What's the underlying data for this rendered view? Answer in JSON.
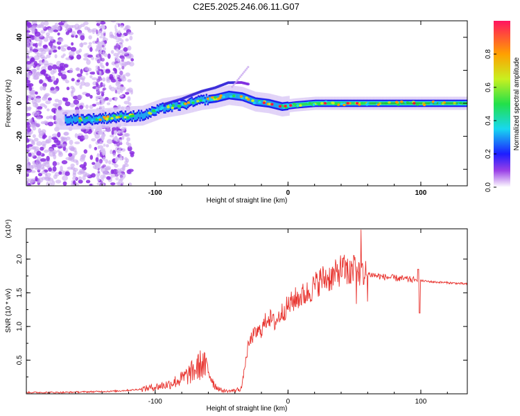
{
  "title": "C2E5.2025.246.06.11.G07",
  "chart_data": [
    {
      "type": "heatmap",
      "xlabel": "Height of straight line (km)",
      "ylabel": "Frequency (Hz)",
      "xlim": [
        -197,
        135
      ],
      "ylim": [
        -50,
        50
      ],
      "xticks": [
        "-100",
        "0",
        "100"
      ],
      "yticks": [
        "40",
        "20",
        "0",
        "-20",
        "-40"
      ],
      "colorbar": {
        "label": "Normalized spectral amplitude",
        "ticks": [
          "0.0",
          "0.2",
          "0.4",
          "0.6",
          "0.8"
        ],
        "range": [
          0,
          1
        ]
      },
      "ridge": [
        {
          "x": -165,
          "y": -10
        },
        {
          "x": -145,
          "y": -9.5
        },
        {
          "x": -125,
          "y": -8
        },
        {
          "x": -110,
          "y": -7.5
        },
        {
          "x": -95,
          "y": -3
        },
        {
          "x": -80,
          "y": -1
        },
        {
          "x": -65,
          "y": 2
        },
        {
          "x": -55,
          "y": 3
        },
        {
          "x": -45,
          "y": 5
        },
        {
          "x": -35,
          "y": 4
        },
        {
          "x": -25,
          "y": 1
        },
        {
          "x": -15,
          "y": 0
        },
        {
          "x": -5,
          "y": -2
        },
        {
          "x": 5,
          "y": -1
        },
        {
          "x": 20,
          "y": 0
        },
        {
          "x": 60,
          "y": 0
        },
        {
          "x": 100,
          "y": 0
        },
        {
          "x": 135,
          "y": 0
        }
      ]
    },
    {
      "type": "line",
      "xlabel": "Height of straight line (km)",
      "ylabel": "SNR (10 * v/v)",
      "y_multiplier": "(x10⁴)",
      "xlim": [
        -197,
        135
      ],
      "ylim": [
        0,
        2.45
      ],
      "xticks": [
        "-100",
        "0",
        "100"
      ],
      "yticks": [
        "2.0",
        "1.5",
        "1.0",
        "0.5"
      ],
      "color": "#e8332e",
      "series": [
        {
          "name": "SNR",
          "x": [
            -197,
            -170,
            -150,
            -130,
            -115,
            -100,
            -90,
            -80,
            -70,
            -65,
            -60,
            -55,
            -50,
            -45,
            -40,
            -35,
            -33,
            -30,
            -27,
            -24,
            -20,
            -15,
            -10,
            -5,
            0,
            5,
            10,
            15,
            20,
            25,
            30,
            35,
            40,
            45,
            48,
            50,
            52,
            55,
            60,
            65,
            70,
            75,
            80,
            85,
            90,
            95,
            98,
            100,
            105,
            110,
            120,
            135
          ],
          "y": [
            0.02,
            0.02,
            0.03,
            0.04,
            0.06,
            0.1,
            0.14,
            0.22,
            0.35,
            0.45,
            0.35,
            0.12,
            0.05,
            0.04,
            0.05,
            0.08,
            0.35,
            0.7,
            0.85,
            0.9,
            0.95,
            1.15,
            1.05,
            1.2,
            1.3,
            1.4,
            1.45,
            1.5,
            1.6,
            1.7,
            1.72,
            1.75,
            1.85,
            1.82,
            1.75,
            1.9,
            1.85,
            1.8,
            1.78,
            1.76,
            1.74,
            1.73,
            1.72,
            1.71,
            1.7,
            1.69,
            1.68,
            1.68,
            1.67,
            1.66,
            1.65,
            1.63
          ]
        }
      ]
    }
  ]
}
